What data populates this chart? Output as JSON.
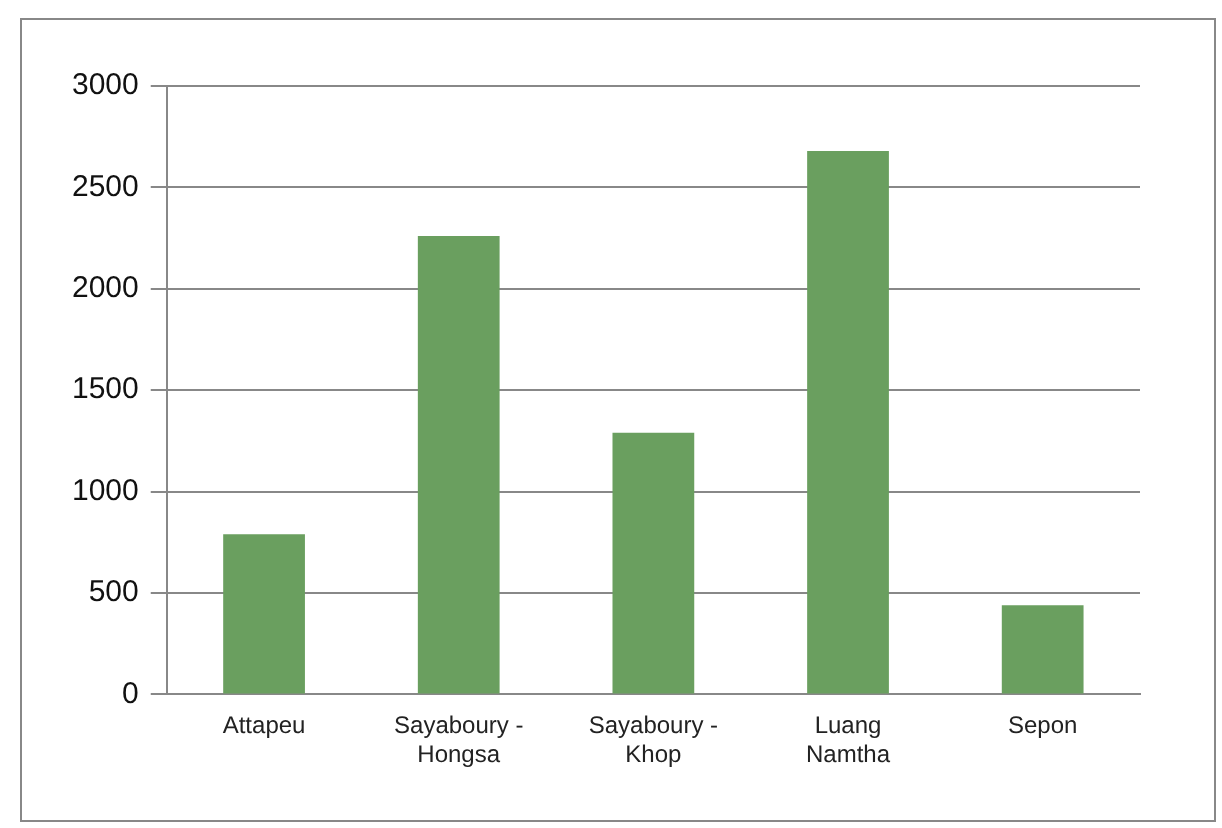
{
  "chart_data": {
    "type": "bar",
    "categories": [
      "Attapeu",
      "Sayaboury - Hongsa",
      "Sayaboury - Khop",
      "Luang Namtha",
      "Sepon"
    ],
    "values": [
      790,
      2260,
      1290,
      2680,
      440
    ],
    "color": "#6a9f5f",
    "ylim": [
      0,
      3000
    ],
    "yticks": [
      0,
      500,
      1000,
      1500,
      2000,
      2500,
      3000
    ],
    "grid": "y",
    "legend": false
  }
}
